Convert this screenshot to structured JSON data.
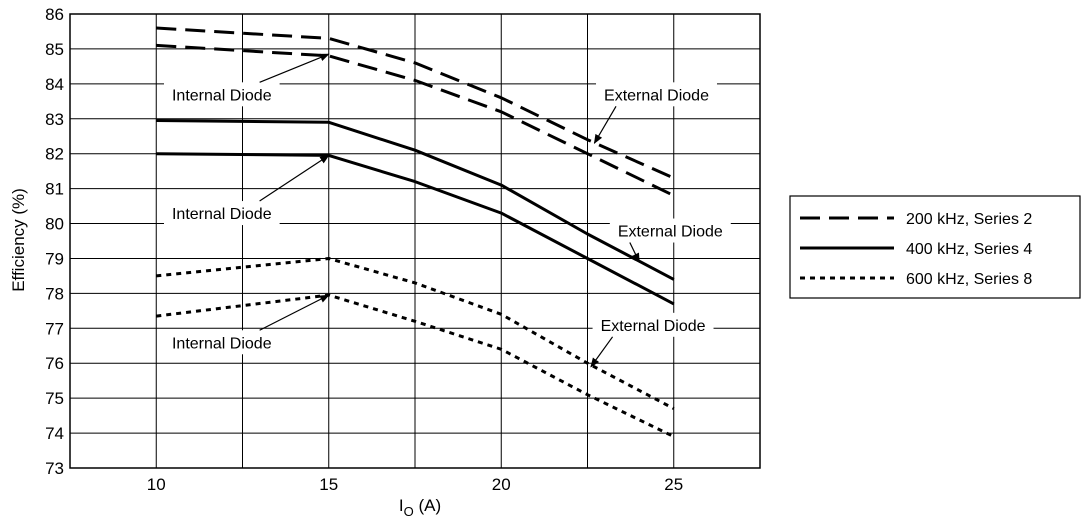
{
  "chart_data": {
    "type": "line",
    "title": "",
    "xlabel": "I",
    "xlabel_sub": "O",
    "xlabel_unit": " (A)",
    "ylabel": "Efficiency (%)",
    "xlim": [
      7.5,
      27.5
    ],
    "ylim": [
      73,
      86
    ],
    "x_ticks": [
      10,
      15,
      20,
      25
    ],
    "y_ticks": [
      73,
      74,
      75,
      76,
      77,
      78,
      79,
      80,
      81,
      82,
      83,
      84,
      85,
      86
    ],
    "grid": true,
    "legend_placement": "right",
    "series": [
      {
        "name": "200 kHz, Series 2",
        "variant": "External Diode",
        "style": "dashed-long",
        "x": [
          10,
          15,
          17.5,
          20,
          22.5,
          25
        ],
        "y": [
          85.6,
          85.3,
          84.6,
          83.6,
          82.4,
          81.3
        ]
      },
      {
        "name": "200 kHz, Series 2",
        "variant": "Internal Diode",
        "style": "dashed-long",
        "x": [
          10,
          15,
          17.5,
          20,
          22.5,
          25
        ],
        "y": [
          85.1,
          84.8,
          84.1,
          83.2,
          82.0,
          80.8
        ]
      },
      {
        "name": "400 kHz, Series 4",
        "variant": "External Diode",
        "style": "solid",
        "x": [
          10,
          15,
          17.5,
          20,
          22.5,
          25
        ],
        "y": [
          82.95,
          82.9,
          82.1,
          81.1,
          79.7,
          78.4
        ]
      },
      {
        "name": "400 kHz, Series 4",
        "variant": "Internal Diode",
        "style": "solid",
        "x": [
          10,
          15,
          17.5,
          20,
          22.5,
          25
        ],
        "y": [
          82.0,
          81.95,
          81.2,
          80.3,
          79.0,
          77.7
        ]
      },
      {
        "name": "600 kHz, Series 8",
        "variant": "External Diode",
        "style": "dotted",
        "x": [
          10,
          15,
          17.5,
          20,
          22.5,
          25
        ],
        "y": [
          78.5,
          79.0,
          78.3,
          77.4,
          76.0,
          74.7
        ]
      },
      {
        "name": "600 kHz, Series 8",
        "variant": "Internal Diode",
        "style": "dotted",
        "x": [
          10,
          15,
          17.5,
          20,
          22.5,
          25
        ],
        "y": [
          77.35,
          77.95,
          77.2,
          76.4,
          75.1,
          73.9
        ]
      }
    ],
    "annotations": [
      {
        "text": "Internal Diode",
        "x": 11.9,
        "y": 83.7,
        "arrow_to": [
          15.0,
          84.85
        ]
      },
      {
        "text": "External Diode",
        "x": 24.5,
        "y": 83.7,
        "arrow_to": [
          22.7,
          82.3
        ]
      },
      {
        "text": "Internal Diode",
        "x": 11.9,
        "y": 80.3,
        "arrow_to": [
          15.0,
          81.95
        ]
      },
      {
        "text": "External Diode",
        "x": 24.9,
        "y": 79.8,
        "arrow_to": [
          24.0,
          78.9
        ]
      },
      {
        "text": "Internal Diode",
        "x": 11.9,
        "y": 76.6,
        "arrow_to": [
          15.0,
          77.95
        ]
      },
      {
        "text": "External Diode",
        "x": 24.4,
        "y": 77.1,
        "arrow_to": [
          22.6,
          75.9
        ]
      }
    ],
    "legend": [
      {
        "label": "200 kHz, Series 2",
        "style": "dashed-long"
      },
      {
        "label": "400 kHz, Series 4",
        "style": "solid"
      },
      {
        "label": "600 kHz, Series 8",
        "style": "dotted"
      }
    ]
  }
}
